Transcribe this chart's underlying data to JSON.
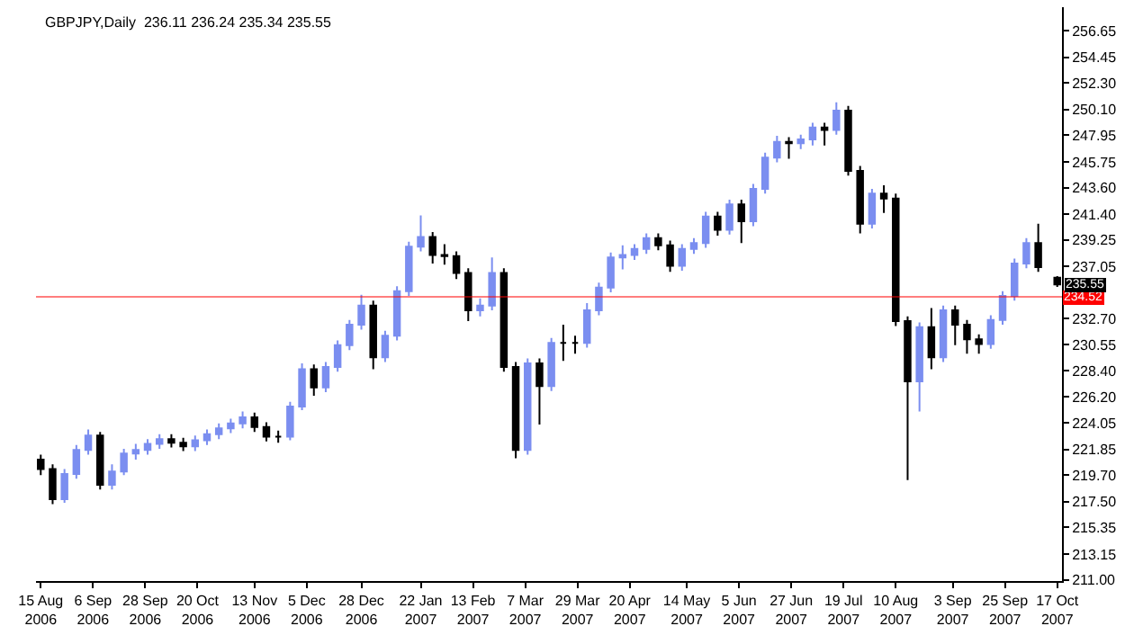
{
  "chart_data": {
    "type": "candlestick",
    "title": "GBPJPY,Daily  236.11 236.24 235.34 235.55",
    "x": [
      "2006-08-15",
      "2006-08-20",
      "2006-08-25",
      "2006-08-30",
      "2006-09-04",
      "2006-09-09",
      "2006-09-14",
      "2006-09-19",
      "2006-09-24",
      "2006-09-29",
      "2006-10-04",
      "2006-10-09",
      "2006-10-14",
      "2006-10-19",
      "2006-10-24",
      "2006-10-29",
      "2006-11-03",
      "2006-11-08",
      "2006-11-13",
      "2006-11-18",
      "2006-11-23",
      "2006-11-28",
      "2006-12-03",
      "2006-12-08",
      "2006-12-13",
      "2006-12-18",
      "2006-12-23",
      "2006-12-28",
      "2007-01-02",
      "2007-01-07",
      "2007-01-12",
      "2007-01-17",
      "2007-01-22",
      "2007-01-27",
      "2007-02-01",
      "2007-02-06",
      "2007-02-11",
      "2007-02-16",
      "2007-02-21",
      "2007-02-26",
      "2007-03-03",
      "2007-03-08",
      "2007-03-13",
      "2007-03-18",
      "2007-03-23",
      "2007-03-28",
      "2007-04-02",
      "2007-04-07",
      "2007-04-12",
      "2007-04-17",
      "2007-04-22",
      "2007-04-27",
      "2007-05-02",
      "2007-05-07",
      "2007-05-12",
      "2007-05-17",
      "2007-05-22",
      "2007-05-27",
      "2007-06-01",
      "2007-06-06",
      "2007-06-11",
      "2007-06-16",
      "2007-06-21",
      "2007-06-26",
      "2007-07-01",
      "2007-07-06",
      "2007-07-11",
      "2007-07-16",
      "2007-07-21",
      "2007-07-26",
      "2007-07-31",
      "2007-08-05",
      "2007-08-10",
      "2007-08-15",
      "2007-08-20",
      "2007-08-25",
      "2007-08-30",
      "2007-09-04",
      "2007-09-09",
      "2007-09-14",
      "2007-09-19",
      "2007-09-24",
      "2007-09-29",
      "2007-10-04",
      "2007-10-09",
      "2007-10-17"
    ],
    "ohlc": [
      [
        221.0,
        221.4,
        219.7,
        220.2
      ],
      [
        220.2,
        220.6,
        217.3,
        217.7
      ],
      [
        217.7,
        220.2,
        217.4,
        219.8
      ],
      [
        219.8,
        222.2,
        219.4,
        221.8
      ],
      [
        221.8,
        223.5,
        221.4,
        223.0
      ],
      [
        223.0,
        223.3,
        218.5,
        218.9
      ],
      [
        218.9,
        220.6,
        218.5,
        220.0
      ],
      [
        220.0,
        221.9,
        219.7,
        221.5
      ],
      [
        221.5,
        222.3,
        221.0,
        221.8
      ],
      [
        221.8,
        222.7,
        221.4,
        222.3
      ],
      [
        222.3,
        223.1,
        221.9,
        222.7
      ],
      [
        222.7,
        223.1,
        222.0,
        222.4
      ],
      [
        222.4,
        222.8,
        221.7,
        222.1
      ],
      [
        222.1,
        223.0,
        221.7,
        222.6
      ],
      [
        222.6,
        223.5,
        222.2,
        223.1
      ],
      [
        223.1,
        224.0,
        222.7,
        223.6
      ],
      [
        223.6,
        224.4,
        223.2,
        224.0
      ],
      [
        224.0,
        225.0,
        223.6,
        224.5
      ],
      [
        224.5,
        224.9,
        223.3,
        223.7
      ],
      [
        223.7,
        224.1,
        222.5,
        222.9
      ],
      [
        222.9,
        223.4,
        222.4,
        222.9
      ],
      [
        222.9,
        225.8,
        222.6,
        225.4
      ],
      [
        225.4,
        229.0,
        225.1,
        228.5
      ],
      [
        228.5,
        228.9,
        226.3,
        227.0
      ],
      [
        227.0,
        229.1,
        226.6,
        228.7
      ],
      [
        228.7,
        230.9,
        228.3,
        230.5
      ],
      [
        230.5,
        232.6,
        230.1,
        232.2
      ],
      [
        232.2,
        234.7,
        231.8,
        233.8
      ],
      [
        233.8,
        234.2,
        228.5,
        229.5
      ],
      [
        229.5,
        231.7,
        229.1,
        231.3
      ],
      [
        231.3,
        235.4,
        230.9,
        235.0
      ],
      [
        235.0,
        239.1,
        234.6,
        238.7
      ],
      [
        238.7,
        241.3,
        238.3,
        239.5
      ],
      [
        239.5,
        239.9,
        237.3,
        238.0
      ],
      [
        238.0,
        238.9,
        237.2,
        237.9
      ],
      [
        237.9,
        238.3,
        236.0,
        236.5
      ],
      [
        236.5,
        236.9,
        232.5,
        233.4
      ],
      [
        233.4,
        234.4,
        232.9,
        233.8
      ],
      [
        233.8,
        237.8,
        233.4,
        236.5
      ],
      [
        236.5,
        236.9,
        228.3,
        228.7
      ],
      [
        228.7,
        229.1,
        221.1,
        221.8
      ],
      [
        221.8,
        229.4,
        221.4,
        229.0
      ],
      [
        229.0,
        229.4,
        223.9,
        227.1
      ],
      [
        227.1,
        231.1,
        226.7,
        230.7
      ],
      [
        230.7,
        232.2,
        229.2,
        230.7
      ],
      [
        230.7,
        231.3,
        229.8,
        230.7
      ],
      [
        230.7,
        234.0,
        230.3,
        233.4
      ],
      [
        233.4,
        235.7,
        233.0,
        235.3
      ],
      [
        235.3,
        238.2,
        234.9,
        237.8
      ],
      [
        237.8,
        238.8,
        236.8,
        238.0
      ],
      [
        238.0,
        238.9,
        237.6,
        238.5
      ],
      [
        238.5,
        239.8,
        238.1,
        239.4
      ],
      [
        239.4,
        239.8,
        238.4,
        238.8
      ],
      [
        238.8,
        239.2,
        236.6,
        237.1
      ],
      [
        237.1,
        238.9,
        236.7,
        238.5
      ],
      [
        238.5,
        239.4,
        238.1,
        239.0
      ],
      [
        239.0,
        241.6,
        238.6,
        241.2
      ],
      [
        241.2,
        241.6,
        239.6,
        240.1
      ],
      [
        240.1,
        242.6,
        239.7,
        242.2
      ],
      [
        242.2,
        242.6,
        239.0,
        240.8
      ],
      [
        240.8,
        243.9,
        240.4,
        243.5
      ],
      [
        243.5,
        246.5,
        243.1,
        246.1
      ],
      [
        246.1,
        247.9,
        245.7,
        247.4
      ],
      [
        247.4,
        247.8,
        246.0,
        247.3
      ],
      [
        247.3,
        248.0,
        246.8,
        247.6
      ],
      [
        247.6,
        249.0,
        247.1,
        248.6
      ],
      [
        248.6,
        249.0,
        247.1,
        248.4
      ],
      [
        248.4,
        250.7,
        248.0,
        250.0
      ],
      [
        250.0,
        250.4,
        244.6,
        245.0
      ],
      [
        245.0,
        245.4,
        239.8,
        240.6
      ],
      [
        240.6,
        243.5,
        240.2,
        243.1
      ],
      [
        243.1,
        243.8,
        241.5,
        242.7
      ],
      [
        242.7,
        243.1,
        232.1,
        232.5
      ],
      [
        232.5,
        232.9,
        219.3,
        227.5
      ],
      [
        227.5,
        232.4,
        225.0,
        232.0
      ],
      [
        232.0,
        233.6,
        228.5,
        229.5
      ],
      [
        229.5,
        233.8,
        229.1,
        233.4
      ],
      [
        233.4,
        233.8,
        230.5,
        232.2
      ],
      [
        232.2,
        232.6,
        229.8,
        231.0
      ],
      [
        231.0,
        231.4,
        229.8,
        230.6
      ],
      [
        230.6,
        233.0,
        230.2,
        232.6
      ],
      [
        232.6,
        235.0,
        232.2,
        234.6
      ],
      [
        234.6,
        237.7,
        234.2,
        237.3
      ],
      [
        237.3,
        239.4,
        236.9,
        239.0
      ],
      [
        239.0,
        240.6,
        236.6,
        237.0
      ],
      [
        236.11,
        236.24,
        235.34,
        235.55
      ]
    ],
    "colors": [
      "#000000",
      "#000000",
      "#7b8ef0",
      "#7b8ef0",
      "#7b8ef0",
      "#000000",
      "#7b8ef0",
      "#7b8ef0",
      "#7b8ef0",
      "#7b8ef0",
      "#7b8ef0",
      "#000000",
      "#000000",
      "#7b8ef0",
      "#7b8ef0",
      "#7b8ef0",
      "#7b8ef0",
      "#7b8ef0",
      "#000000",
      "#000000",
      "#000000",
      "#7b8ef0",
      "#7b8ef0",
      "#000000",
      "#7b8ef0",
      "#7b8ef0",
      "#7b8ef0",
      "#7b8ef0",
      "#000000",
      "#7b8ef0",
      "#7b8ef0",
      "#7b8ef0",
      "#7b8ef0",
      "#000000",
      "#000000",
      "#000000",
      "#000000",
      "#7b8ef0",
      "#7b8ef0",
      "#000000",
      "#000000",
      "#7b8ef0",
      "#000000",
      "#7b8ef0",
      "#000000",
      "#000000",
      "#7b8ef0",
      "#7b8ef0",
      "#7b8ef0",
      "#7b8ef0",
      "#7b8ef0",
      "#7b8ef0",
      "#000000",
      "#000000",
      "#7b8ef0",
      "#7b8ef0",
      "#7b8ef0",
      "#000000",
      "#7b8ef0",
      "#000000",
      "#7b8ef0",
      "#7b8ef0",
      "#7b8ef0",
      "#000000",
      "#7b8ef0",
      "#7b8ef0",
      "#000000",
      "#7b8ef0",
      "#000000",
      "#000000",
      "#7b8ef0",
      "#000000",
      "#000000",
      "#000000",
      "#7b8ef0",
      "#000000",
      "#7b8ef0",
      "#000000",
      "#000000",
      "#000000",
      "#7b8ef0",
      "#7b8ef0",
      "#7b8ef0",
      "#7b8ef0",
      "#000000",
      "#000000"
    ],
    "xlim": [
      "2006-08-13",
      "2007-10-19"
    ],
    "xticks": [
      {
        "value": "2006-08-15",
        "label": "15 Aug 2006"
      },
      {
        "value": "2006-09-06",
        "label": "6 Sep 2006"
      },
      {
        "value": "2006-09-28",
        "label": "28 Sep 2006"
      },
      {
        "value": "2006-10-20",
        "label": "20 Oct 2006"
      },
      {
        "value": "2006-11-13",
        "label": "13 Nov 2006"
      },
      {
        "value": "2006-12-05",
        "label": "5 Dec 2006"
      },
      {
        "value": "2006-12-28",
        "label": "28 Dec 2006"
      },
      {
        "value": "2007-01-22",
        "label": "22 Jan 2007"
      },
      {
        "value": "2007-02-13",
        "label": "13 Feb 2007"
      },
      {
        "value": "2007-03-07",
        "label": "7 Mar 2007"
      },
      {
        "value": "2007-03-29",
        "label": "29 Mar 2007"
      },
      {
        "value": "2007-04-20",
        "label": "20 Apr 2007"
      },
      {
        "value": "2007-05-14",
        "label": "14 May 2007"
      },
      {
        "value": "2007-06-05",
        "label": "5 Jun 2007"
      },
      {
        "value": "2007-06-27",
        "label": "27 Jun 2007"
      },
      {
        "value": "2007-07-19",
        "label": "19 Jul 2007"
      },
      {
        "value": "2007-08-10",
        "label": "10 Aug 2007"
      },
      {
        "value": "2007-09-03",
        "label": "3 Sep 2007"
      },
      {
        "value": "2007-09-25",
        "label": "25 Sep 2007"
      },
      {
        "value": "2007-10-17",
        "label": "17 Oct 2007"
      }
    ],
    "ylim": [
      210.9,
      258.6
    ],
    "yticks": [
      {
        "value": 256.65,
        "label": "256.65"
      },
      {
        "value": 254.45,
        "label": "254.45"
      },
      {
        "value": 252.3,
        "label": "252.30"
      },
      {
        "value": 250.1,
        "label": "250.10"
      },
      {
        "value": 247.95,
        "label": "247.95"
      },
      {
        "value": 245.75,
        "label": "245.75"
      },
      {
        "value": 243.6,
        "label": "243.60"
      },
      {
        "value": 241.4,
        "label": "241.40"
      },
      {
        "value": 239.25,
        "label": "239.25"
      },
      {
        "value": 237.05,
        "label": "237.05"
      },
      {
        "value": 232.7,
        "label": "232.70"
      },
      {
        "value": 230.55,
        "label": "230.55"
      },
      {
        "value": 228.4,
        "label": "228.40"
      },
      {
        "value": 226.2,
        "label": "226.20"
      },
      {
        "value": 224.05,
        "label": "224.05"
      },
      {
        "value": 221.85,
        "label": "221.85"
      },
      {
        "value": 219.7,
        "label": "219.70"
      },
      {
        "value": 217.5,
        "label": "217.50"
      },
      {
        "value": 215.35,
        "label": "215.35"
      },
      {
        "value": 213.15,
        "label": "213.15"
      },
      {
        "value": 211.0,
        "label": "211.00"
      }
    ],
    "ref_lines": [
      {
        "axis": "y",
        "value": 234.52,
        "label": "234.52",
        "color": "#ff0000"
      }
    ],
    "annotations": [
      {
        "text": "235.55",
        "x": "2007-10-17",
        "y": 235.55
      }
    ]
  }
}
